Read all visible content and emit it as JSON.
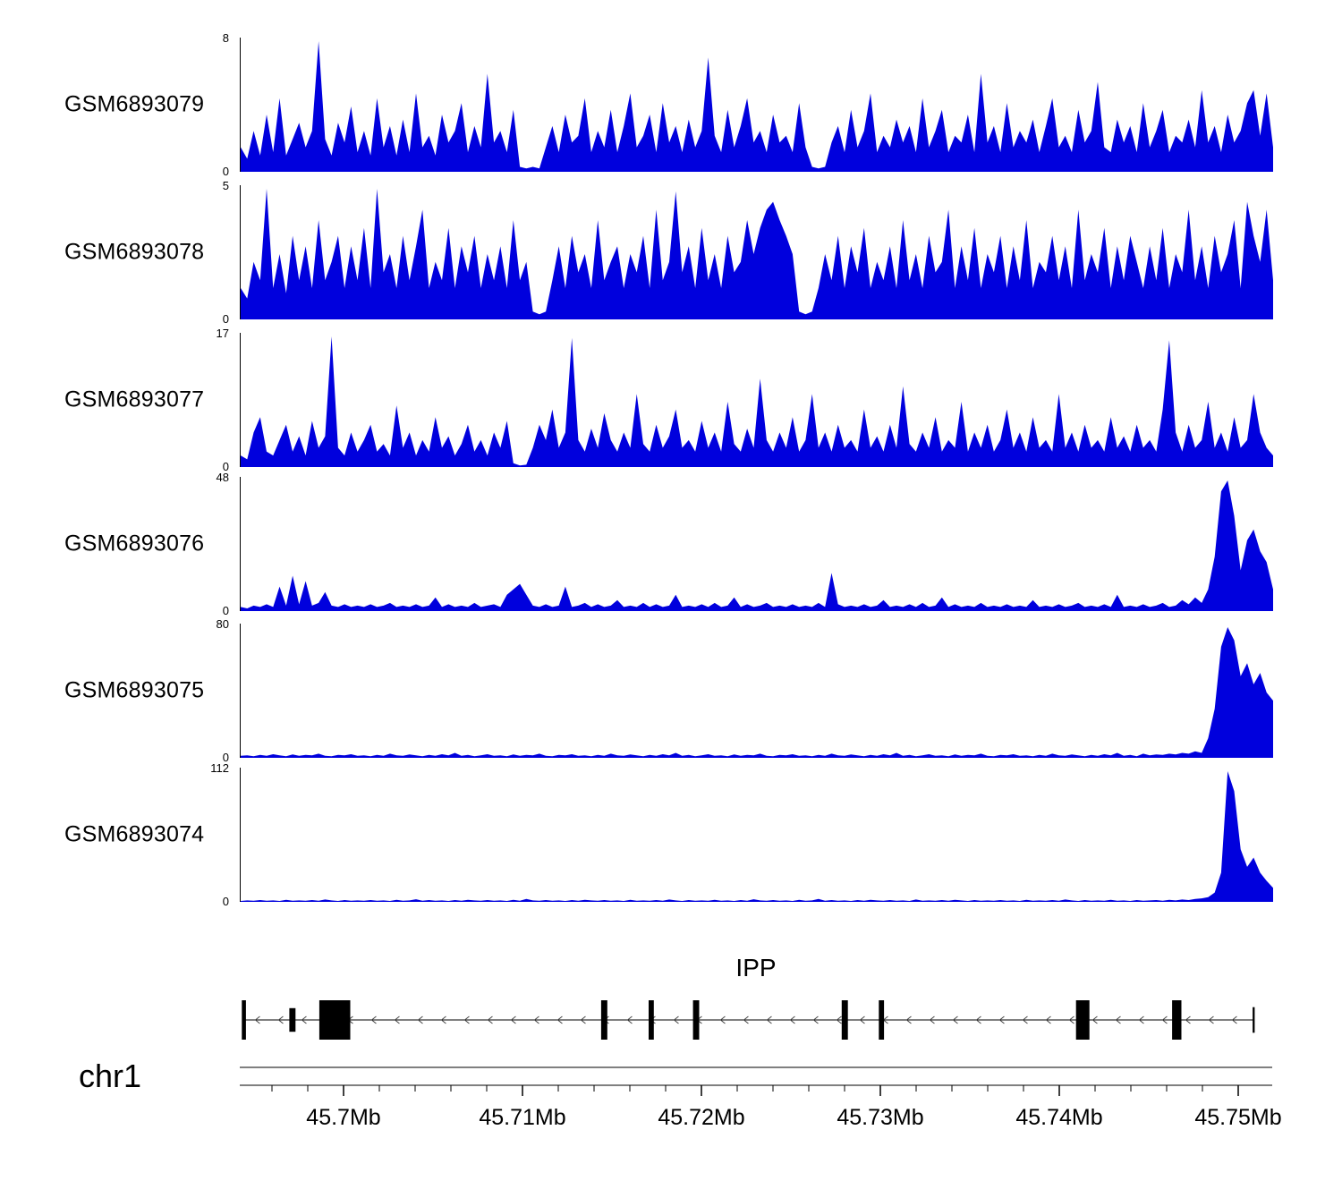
{
  "chart_data": {
    "type": "area",
    "title": "",
    "color": "#0000dd",
    "legend": "none",
    "grid": false,
    "tracks": [
      {
        "label": "GSM6893079",
        "ymin": 0,
        "ymax": 8,
        "values": [
          1.5,
          0.8,
          2.5,
          1,
          3.5,
          1.2,
          4.5,
          1,
          2,
          3,
          1.5,
          2.5,
          8,
          2,
          1,
          3,
          1.8,
          4,
          1.2,
          2.5,
          1,
          4.5,
          1.5,
          2.8,
          1,
          3.2,
          1.2,
          4.8,
          1.5,
          2.2,
          1,
          3.5,
          1.8,
          2.5,
          4.2,
          1.2,
          2.8,
          1.5,
          6,
          1.8,
          2.5,
          1.2,
          3.8,
          0.3,
          0.2,
          0.3,
          0.2,
          1.5,
          2.8,
          1.2,
          3.5,
          1.8,
          2.2,
          4.5,
          1.2,
          2.5,
          1.5,
          3.8,
          1.2,
          2.8,
          4.8,
          1.5,
          2.2,
          3.5,
          1.2,
          4.2,
          1.8,
          2.8,
          1.2,
          3.2,
          1.5,
          2.5,
          7,
          2.2,
          1.2,
          3.8,
          1.5,
          2.8,
          4.5,
          1.8,
          2.5,
          1.2,
          3.5,
          1.8,
          2.2,
          1.2,
          4.2,
          1.5,
          0.3,
          0.2,
          0.3,
          1.8,
          2.8,
          1.2,
          3.8,
          1.5,
          2.5,
          4.8,
          1.2,
          2.2,
          1.5,
          3.2,
          1.8,
          2.8,
          1.2,
          4.5,
          1.5,
          2.5,
          3.8,
          1.2,
          2.2,
          1.8,
          3.5,
          1.2,
          6,
          1.8,
          2.8,
          1.2,
          4.2,
          1.5,
          2.5,
          1.8,
          3.2,
          1.2,
          2.8,
          4.5,
          1.5,
          2.2,
          1.2,
          3.8,
          1.8,
          2.5,
          5.5,
          1.5,
          1.2,
          3.2,
          1.8,
          2.8,
          1.2,
          4.2,
          1.5,
          2.5,
          3.8,
          1.2,
          2.2,
          1.8,
          3.2,
          1.5,
          5,
          1.8,
          2.8,
          1.2,
          3.5,
          1.8,
          2.5,
          4.2,
          5,
          2.2,
          4.8,
          1.5
        ]
      },
      {
        "label": "GSM6893078",
        "ymin": 0,
        "ymax": 5,
        "values": [
          1.2,
          0.8,
          2.2,
          1.5,
          5,
          1.2,
          2.5,
          1,
          3.2,
          1.5,
          2.8,
          1.2,
          3.8,
          1.5,
          2.2,
          3.2,
          1.2,
          2.8,
          1.5,
          3.5,
          1.2,
          5,
          1.8,
          2.5,
          1.2,
          3.2,
          1.5,
          2.8,
          4.2,
          1.2,
          2.2,
          1.5,
          3.5,
          1.2,
          2.8,
          1.8,
          3.2,
          1.2,
          2.5,
          1.5,
          2.8,
          1.2,
          3.8,
          1.5,
          2.2,
          0.3,
          0.2,
          0.3,
          1.5,
          2.8,
          1.2,
          3.2,
          1.8,
          2.5,
          1.2,
          3.8,
          1.5,
          2.2,
          2.8,
          1.2,
          2.5,
          1.8,
          3.2,
          1.2,
          4.2,
          1.5,
          2.2,
          4.9,
          1.8,
          2.8,
          1.2,
          3.5,
          1.5,
          2.5,
          1.2,
          3.2,
          1.8,
          2.2,
          3.8,
          2.5,
          3.5,
          4.2,
          4.5,
          3.8,
          3.2,
          2.5,
          0.3,
          0.2,
          0.3,
          1.2,
          2.5,
          1.5,
          3.2,
          1.2,
          2.8,
          1.8,
          3.5,
          1.2,
          2.2,
          1.5,
          2.8,
          1.2,
          3.8,
          1.5,
          2.5,
          1.2,
          3.2,
          1.8,
          2.2,
          4.2,
          1.2,
          2.8,
          1.5,
          3.5,
          1.2,
          2.5,
          1.8,
          3.2,
          1.2,
          2.8,
          1.5,
          3.8,
          1.2,
          2.2,
          1.8,
          3.2,
          1.5,
          2.8,
          1.2,
          4.2,
          1.5,
          2.5,
          1.8,
          3.5,
          1.2,
          2.8,
          1.5,
          3.2,
          2.2,
          1.2,
          2.8,
          1.5,
          3.5,
          1.2,
          2.5,
          1.8,
          4.2,
          1.5,
          2.8,
          1.2,
          3.2,
          1.8,
          2.5,
          3.8,
          1.2,
          4.5,
          3.2,
          2.2,
          4.2,
          1.5
        ]
      },
      {
        "label": "GSM6893077",
        "ymin": 0,
        "ymax": 17,
        "values": [
          1.5,
          1,
          4.5,
          6.5,
          2,
          1.5,
          3.5,
          5.5,
          2,
          4,
          1.5,
          6,
          2.5,
          4,
          17,
          2.5,
          1.5,
          4.5,
          2,
          3.5,
          5.5,
          2,
          3,
          1.5,
          8,
          2.5,
          4.5,
          1.5,
          3.5,
          2,
          6.5,
          2.5,
          4,
          1.5,
          3,
          5.5,
          2,
          3.5,
          1.5,
          4.5,
          2.5,
          6,
          0.5,
          0.2,
          0.3,
          2.5,
          5.5,
          3.5,
          7.5,
          2.5,
          4.5,
          16.8,
          3.5,
          2,
          5,
          2.5,
          7,
          3.5,
          2,
          4.5,
          2.5,
          9.5,
          3,
          2,
          5.5,
          2.5,
          4,
          7.5,
          2.5,
          3.5,
          2,
          6,
          2.5,
          4.5,
          2,
          8.5,
          3,
          2,
          5,
          2.5,
          11.5,
          3.5,
          2,
          4.5,
          2.5,
          6.5,
          2,
          3.5,
          9.5,
          2.5,
          4.5,
          2,
          5.5,
          2.5,
          3.5,
          2,
          7.5,
          2.5,
          4,
          2,
          5.5,
          2.5,
          10.5,
          3,
          2,
          4.5,
          2.5,
          6.5,
          2,
          3.5,
          2.5,
          8.5,
          2,
          4.5,
          2.5,
          5.5,
          2,
          3.5,
          7.5,
          2.5,
          4.5,
          2,
          6.5,
          2.5,
          3.5,
          2,
          9.5,
          2.5,
          4.5,
          2,
          5.5,
          2.5,
          3.5,
          2,
          6.5,
          2.5,
          4,
          2,
          5.5,
          2.5,
          3.5,
          2,
          7.5,
          16.5,
          4.5,
          2,
          5.5,
          2.5,
          3.5,
          8.5,
          2.5,
          4.5,
          2,
          6.5,
          2.5,
          3.5,
          9.5,
          4.5,
          2.5,
          1.5
        ]
      },
      {
        "label": "GSM6893076",
        "ymin": 0,
        "ymax": 48,
        "values": [
          1.5,
          1,
          2,
          1.5,
          2.5,
          1.5,
          9,
          2,
          13,
          2.5,
          11,
          2,
          3,
          7,
          2,
          1.5,
          2.5,
          1.5,
          2,
          1.5,
          2.5,
          1.5,
          2,
          3,
          1.5,
          2,
          1.5,
          2.5,
          1.5,
          2,
          5,
          1.5,
          2.5,
          1.5,
          2,
          1.5,
          3,
          1.5,
          2,
          2.5,
          1.5,
          6,
          8,
          10,
          6,
          2,
          1.5,
          2.5,
          1.5,
          2,
          9,
          1.5,
          2,
          3,
          1.5,
          2.5,
          1.5,
          2,
          4,
          1.5,
          2,
          1.5,
          3,
          1.5,
          2.5,
          1.5,
          2,
          6,
          1.5,
          2,
          1.5,
          2.5,
          1.5,
          3,
          1.5,
          2,
          5,
          1.5,
          2.5,
          1.5,
          2,
          3,
          1.5,
          2,
          1.5,
          2.5,
          1.5,
          2,
          1.5,
          3,
          1.5,
          14,
          2.5,
          1.5,
          2,
          1.5,
          2.5,
          1.5,
          2,
          4,
          1.5,
          2,
          1.5,
          2.5,
          1.5,
          3,
          1.5,
          2,
          5,
          1.5,
          2.5,
          1.5,
          2,
          1.5,
          3,
          1.5,
          2,
          1.5,
          2.5,
          1.5,
          2,
          1.5,
          4,
          1.5,
          2,
          1.5,
          2.5,
          1.5,
          2,
          3,
          1.5,
          2,
          1.5,
          2.5,
          1.5,
          6,
          1.5,
          2,
          1.5,
          2.5,
          1.5,
          2,
          3,
          1.5,
          2,
          4,
          2.5,
          5,
          3,
          8,
          20,
          44,
          48,
          35,
          15,
          26,
          30,
          22,
          18,
          8
        ]
      },
      {
        "label": "GSM6893075",
        "ymin": 0,
        "ymax": 80,
        "values": [
          1.2,
          1.5,
          1,
          1.8,
          1.2,
          2.2,
          1.5,
          1,
          2,
          1.2,
          1.8,
          1.5,
          2.5,
          1.2,
          1,
          1.8,
          1.5,
          2.2,
          1.2,
          1.5,
          1,
          1.8,
          1.2,
          2.5,
          1.5,
          1.2,
          2,
          1.5,
          1,
          1.8,
          1.2,
          2.2,
          1.5,
          3,
          1.2,
          1.8,
          1,
          1.5,
          2.2,
          1.2,
          1.5,
          1,
          2,
          1.2,
          1.8,
          1.5,
          2.5,
          1.2,
          1,
          1.8,
          1.5,
          2.2,
          1.2,
          1.5,
          1,
          1.8,
          1.2,
          2.5,
          1.5,
          1.2,
          2,
          1.5,
          1,
          1.8,
          1.2,
          2.2,
          1.5,
          3,
          1.2,
          1.8,
          1,
          1.5,
          2.2,
          1.2,
          1.5,
          1,
          2,
          1.2,
          1.8,
          1.5,
          2.5,
          1.2,
          1,
          1.8,
          1.5,
          2.2,
          1.2,
          1.5,
          1,
          1.8,
          1.2,
          2.5,
          1.5,
          1.2,
          2,
          1.5,
          1,
          1.8,
          1.2,
          2.2,
          1.5,
          3,
          1.2,
          1.8,
          1,
          1.5,
          2.2,
          1.2,
          1.5,
          1,
          2,
          1.2,
          1.8,
          1.5,
          2.5,
          1.2,
          1,
          1.8,
          1.5,
          2.2,
          1.2,
          1.5,
          1,
          1.8,
          1.2,
          2.5,
          1.5,
          1.2,
          2,
          1.5,
          1,
          1.8,
          1.2,
          2.2,
          1.5,
          3,
          1.2,
          1.8,
          1,
          2.5,
          1.5,
          2,
          1.8,
          2.5,
          2,
          3,
          2.5,
          4,
          3,
          12,
          30,
          68,
          80,
          72,
          50,
          58,
          45,
          52,
          40,
          35
        ]
      },
      {
        "label": "GSM6893074",
        "ymin": 0,
        "ymax": 112,
        "values": [
          0.8,
          1.2,
          0.9,
          1.5,
          1,
          1.2,
          0.8,
          1.8,
          1,
          1.2,
          0.9,
          1.5,
          1,
          2,
          1.2,
          0.8,
          1.5,
          1,
          1.2,
          0.9,
          1.5,
          1,
          1.2,
          0.8,
          1.8,
          1,
          1.2,
          2.2,
          0.9,
          1.5,
          1,
          1.2,
          0.8,
          1.5,
          1,
          1.8,
          1.2,
          0.9,
          1.5,
          1,
          1.2,
          0.8,
          1.8,
          1,
          2.5,
          1.2,
          0.9,
          1.5,
          1,
          1.2,
          0.8,
          1.5,
          1,
          1.8,
          1.2,
          0.9,
          1.5,
          1,
          1.2,
          0.8,
          1.8,
          1,
          1.2,
          0.9,
          1.5,
          1,
          2,
          1.2,
          0.8,
          1.5,
          1,
          1.2,
          0.9,
          1.8,
          1,
          1.2,
          0.8,
          1.5,
          1,
          2.2,
          1.2,
          0.9,
          1.5,
          1,
          1.2,
          0.8,
          1.8,
          1,
          1.2,
          2.5,
          0.9,
          1.5,
          1,
          1.2,
          0.8,
          1.5,
          1,
          1.8,
          1.2,
          0.9,
          1.5,
          1,
          1.2,
          0.8,
          2,
          1,
          1.2,
          0.9,
          1.5,
          1,
          1.8,
          1.2,
          0.8,
          1.5,
          1,
          1.2,
          0.9,
          1.5,
          1,
          1.2,
          0.8,
          1.8,
          1,
          1.2,
          0.9,
          1.5,
          1,
          2,
          1.2,
          0.8,
          1.5,
          1,
          1.2,
          0.9,
          1.8,
          1,
          1.2,
          0.8,
          1.5,
          1,
          1.2,
          1.5,
          1,
          1.8,
          1.2,
          2,
          1.5,
          2.5,
          3,
          4,
          8,
          25,
          112,
          95,
          45,
          30,
          38,
          25,
          18,
          12
        ]
      }
    ],
    "gene": {
      "name": "IPP",
      "chrom_label": "chr1",
      "strand": "-",
      "line_x0": 0.003,
      "line_x1": 0.982,
      "exons": [
        {
          "x": 0.002,
          "w": 0.004,
          "h": 1.0
        },
        {
          "x": 0.048,
          "w": 0.006,
          "h": 0.6
        },
        {
          "x": 0.077,
          "w": 0.03,
          "h": 1.0
        },
        {
          "x": 0.35,
          "w": 0.006,
          "h": 1.0
        },
        {
          "x": 0.396,
          "w": 0.005,
          "h": 1.0
        },
        {
          "x": 0.439,
          "w": 0.006,
          "h": 1.0
        },
        {
          "x": 0.583,
          "w": 0.006,
          "h": 1.0
        },
        {
          "x": 0.619,
          "w": 0.005,
          "h": 1.0
        },
        {
          "x": 0.81,
          "w": 0.013,
          "h": 1.0
        },
        {
          "x": 0.903,
          "w": 0.009,
          "h": 1.0
        },
        {
          "x": 0.981,
          "w": 0.002,
          "h": 0.65
        }
      ]
    },
    "ruler": {
      "start_mb": 45.6942,
      "end_mb": 45.7519,
      "minor_step_mb": 0.002,
      "major_ticks": [
        {
          "mb": 45.7,
          "label": "45.7Mb"
        },
        {
          "mb": 45.71,
          "label": "45.71Mb"
        },
        {
          "mb": 45.72,
          "label": "45.72Mb"
        },
        {
          "mb": 45.73,
          "label": "45.73Mb"
        },
        {
          "mb": 45.74,
          "label": "45.74Mb"
        },
        {
          "mb": 45.75,
          "label": "45.75Mb"
        }
      ]
    }
  }
}
